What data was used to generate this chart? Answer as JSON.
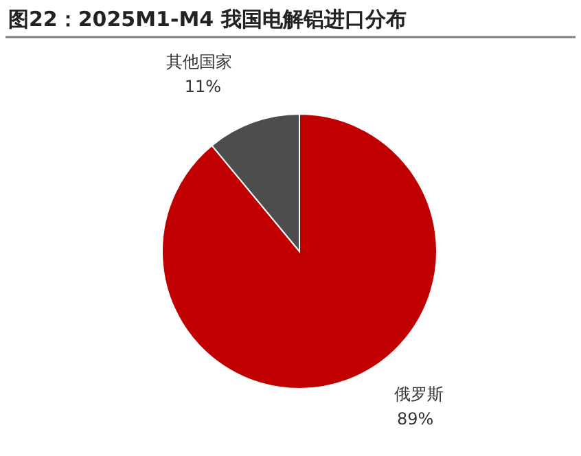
{
  "chart_data": {
    "type": "pie",
    "title": "图22：2025M1-M4 我国电解铝进口分布",
    "categories": [
      "俄罗斯",
      "其他国家"
    ],
    "values": [
      89,
      11
    ],
    "colors": [
      "#c00000",
      "#4d4d4d"
    ],
    "value_labels": [
      "89%",
      "11%"
    ]
  }
}
